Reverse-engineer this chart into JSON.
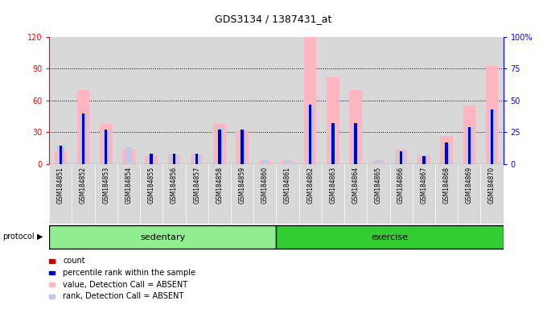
{
  "title": "GDS3134 / 1387431_at",
  "samples": [
    "GSM184851",
    "GSM184852",
    "GSM184853",
    "GSM184854",
    "GSM184855",
    "GSM184856",
    "GSM184857",
    "GSM184858",
    "GSM184859",
    "GSM184860",
    "GSM184861",
    "GSM184862",
    "GSM184863",
    "GSM184864",
    "GSM184865",
    "GSM184866",
    "GSM184867",
    "GSM184868",
    "GSM184869",
    "GSM184870"
  ],
  "count_values": [
    0,
    0,
    0,
    0,
    0,
    0,
    0,
    0,
    0,
    0,
    0,
    0,
    0,
    0,
    0,
    0,
    0,
    0,
    0,
    0
  ],
  "rank_values": [
    14,
    40,
    27,
    0,
    8,
    8,
    8,
    27,
    27,
    0,
    0,
    47,
    32,
    32,
    0,
    10,
    6,
    17,
    29,
    43
  ],
  "absent_value": [
    12,
    70,
    38,
    13,
    8,
    9,
    9,
    38,
    32,
    3,
    3,
    120,
    82,
    70,
    3,
    13,
    8,
    26,
    55,
    93
  ],
  "absent_rank": [
    14,
    40,
    27,
    13,
    8,
    8,
    8,
    29,
    27,
    3,
    3,
    47,
    32,
    32,
    3,
    10,
    6,
    17,
    29,
    43
  ],
  "left_ylim": [
    0,
    120
  ],
  "right_ylim": [
    0,
    100
  ],
  "left_yticks": [
    0,
    30,
    60,
    90,
    120
  ],
  "right_yticks": [
    0,
    25,
    50,
    75,
    100
  ],
  "right_yticklabels": [
    "0",
    "25",
    "50",
    "75",
    "100%"
  ],
  "color_count": "#cc0000",
  "color_rank": "#0000cc",
  "color_absent_value": "#FFB6C1",
  "color_absent_rank": "#C0C8E8",
  "plot_bg": "#ffffff",
  "col_bg": "#d8d8d8",
  "sedentary_color": "#90EE90",
  "exercise_color": "#32CD32",
  "n_sedentary": 10,
  "n_exercise": 10
}
